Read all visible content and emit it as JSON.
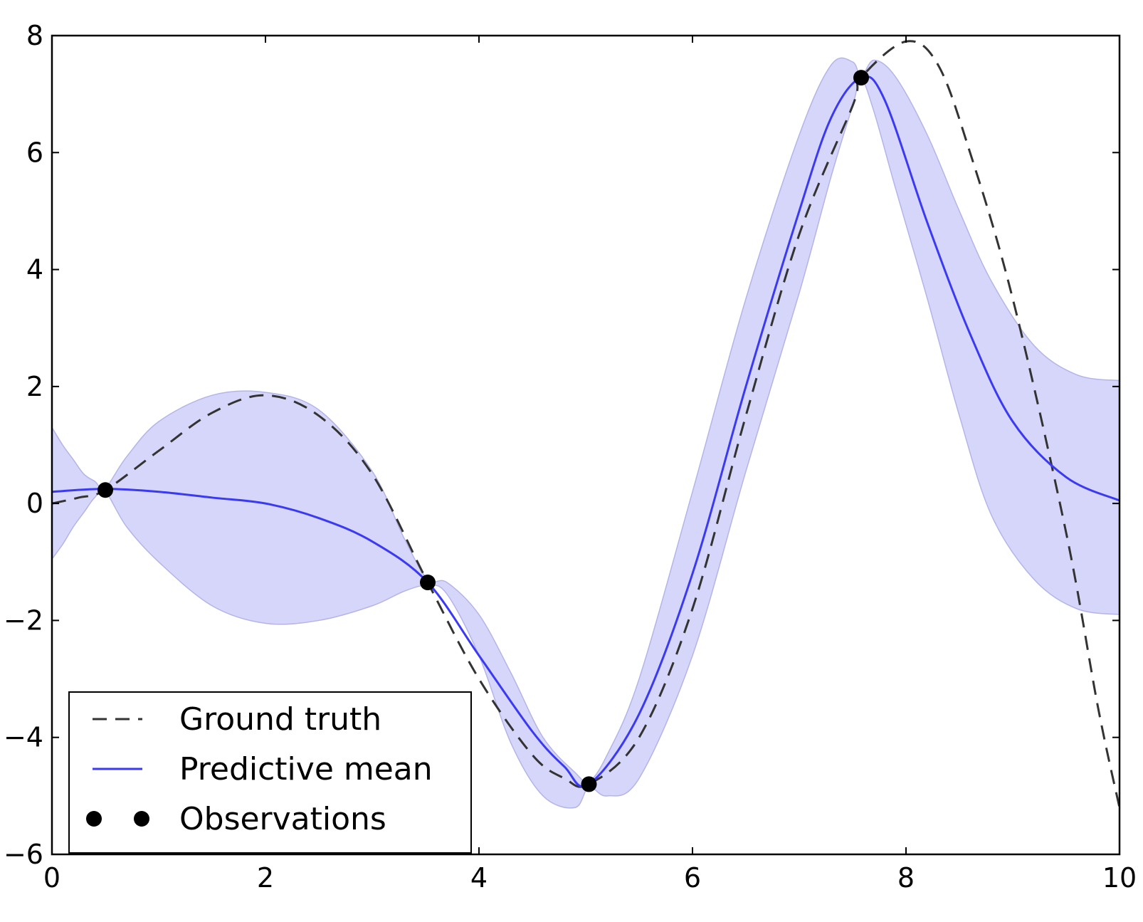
{
  "chart_data": {
    "type": "line",
    "title": "",
    "xlabel": "",
    "ylabel": "",
    "xlim": [
      0,
      10
    ],
    "ylim": [
      -6,
      8
    ],
    "grid": false,
    "legend_position": "lower-left",
    "x_ticks": [
      0,
      2,
      4,
      6,
      8,
      10
    ],
    "x_tick_labels": [
      "0",
      "2",
      "4",
      "6",
      "8",
      "10"
    ],
    "y_ticks": [
      -6,
      -4,
      -2,
      0,
      2,
      4,
      6,
      8
    ],
    "y_tick_labels": [
      "−6",
      "−4",
      "−2",
      "0",
      "2",
      "4",
      "6",
      "8"
    ],
    "series": [
      {
        "name": "Ground truth",
        "kind": "line",
        "style": "dashed",
        "color": "#333333",
        "points": [
          [
            0.0,
            0.0
          ],
          [
            0.25,
            0.1
          ],
          [
            0.5,
            0.23
          ],
          [
            1.0,
            0.9
          ],
          [
            1.5,
            1.55
          ],
          [
            2.0,
            1.85
          ],
          [
            2.5,
            1.5
          ],
          [
            3.0,
            0.5
          ],
          [
            3.52,
            -1.35
          ],
          [
            4.0,
            -3.0
          ],
          [
            4.5,
            -4.3
          ],
          [
            4.8,
            -4.7
          ],
          [
            5.03,
            -4.8
          ],
          [
            5.5,
            -4.0
          ],
          [
            6.0,
            -1.8
          ],
          [
            6.5,
            1.5
          ],
          [
            7.0,
            4.6
          ],
          [
            7.5,
            6.8
          ],
          [
            7.58,
            7.28
          ],
          [
            8.0,
            7.9
          ],
          [
            8.3,
            7.5
          ],
          [
            8.6,
            6.0
          ],
          [
            9.0,
            3.5
          ],
          [
            9.5,
            -0.5
          ],
          [
            9.8,
            -3.5
          ],
          [
            10.0,
            -5.2
          ]
        ]
      },
      {
        "name": "Predictive mean",
        "kind": "line",
        "style": "solid",
        "color": "#3a3af5",
        "points": [
          [
            0.0,
            0.2
          ],
          [
            0.5,
            0.25
          ],
          [
            1.0,
            0.2
          ],
          [
            1.5,
            0.1
          ],
          [
            2.0,
            0.0
          ],
          [
            2.5,
            -0.25
          ],
          [
            3.0,
            -0.65
          ],
          [
            3.52,
            -1.35
          ],
          [
            4.0,
            -2.6
          ],
          [
            4.5,
            -3.9
          ],
          [
            4.8,
            -4.5
          ],
          [
            5.03,
            -4.8
          ],
          [
            5.5,
            -3.6
          ],
          [
            6.0,
            -1.2
          ],
          [
            6.5,
            2.0
          ],
          [
            7.0,
            5.0
          ],
          [
            7.3,
            6.6
          ],
          [
            7.58,
            7.28
          ],
          [
            7.8,
            6.9
          ],
          [
            8.2,
            4.8
          ],
          [
            8.6,
            2.9
          ],
          [
            9.0,
            1.4
          ],
          [
            9.5,
            0.45
          ],
          [
            10.0,
            0.05
          ]
        ]
      },
      {
        "name": "Observations",
        "kind": "scatter",
        "color": "#000000",
        "points": [
          [
            0.5,
            0.23
          ],
          [
            3.52,
            -1.35
          ],
          [
            5.03,
            -4.8
          ],
          [
            7.58,
            7.28
          ]
        ]
      }
    ],
    "confidence_band": {
      "fill": "#d6d6fa",
      "stroke": "#b4b4e8",
      "x": [
        0.0,
        0.1,
        0.2,
        0.3,
        0.4,
        0.5,
        0.7,
        1.0,
        1.5,
        2.0,
        2.5,
        3.0,
        3.3,
        3.52,
        3.7,
        4.0,
        4.3,
        4.6,
        4.9,
        5.03,
        5.2,
        5.5,
        6.0,
        6.5,
        7.0,
        7.3,
        7.5,
        7.58,
        7.7,
        7.9,
        8.2,
        8.5,
        8.8,
        9.2,
        9.6,
        10.0
      ],
      "upper": [
        1.3,
        1.0,
        0.75,
        0.5,
        0.38,
        0.27,
        0.8,
        1.4,
        1.85,
        1.9,
        1.6,
        0.55,
        -0.6,
        -1.3,
        -1.35,
        -1.9,
        -2.9,
        -4.0,
        -4.6,
        -4.75,
        -4.3,
        -3.0,
        0.2,
        3.5,
        6.3,
        7.5,
        7.55,
        7.3,
        7.58,
        7.3,
        6.3,
        5.0,
        3.8,
        2.7,
        2.2,
        2.1
      ],
      "lower": [
        -0.95,
        -0.7,
        -0.4,
        -0.15,
        0.1,
        0.2,
        -0.4,
        -1.0,
        -1.75,
        -2.05,
        -2.0,
        -1.75,
        -1.5,
        -1.4,
        -1.55,
        -2.6,
        -4.1,
        -5.0,
        -5.2,
        -4.85,
        -5.0,
        -4.7,
        -2.6,
        0.55,
        3.6,
        5.6,
        6.8,
        7.25,
        6.7,
        5.4,
        3.5,
        1.5,
        -0.2,
        -1.3,
        -1.8,
        -1.9
      ]
    }
  }
}
